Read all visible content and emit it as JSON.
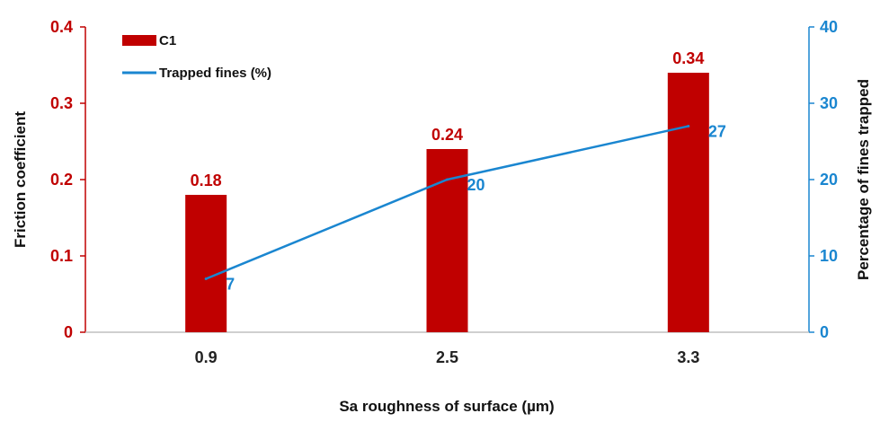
{
  "chart_data": {
    "type": "bar",
    "categories": [
      "0.9",
      "2.5",
      "3.3"
    ],
    "series": [
      {
        "name": "C1",
        "kind": "bar",
        "axis": "left",
        "color": "#c00000",
        "values": [
          0.18,
          0.24,
          0.34
        ],
        "labels": [
          "0.18",
          "0.24",
          "0.34"
        ]
      },
      {
        "name": "Trapped fines (%)",
        "kind": "line",
        "axis": "right",
        "color": "#1a86d0",
        "values": [
          7,
          20,
          27
        ],
        "labels": [
          "7",
          "20",
          "27"
        ]
      }
    ],
    "xlabel": "Sa roughness of surface (µm)",
    "ylabel": "Friction coefficient",
    "y2label": "Percentage of fines trapped",
    "ylim": [
      0,
      0.4
    ],
    "y2lim": [
      0,
      40
    ],
    "yticks": [
      "0",
      "0.1",
      "0.2",
      "0.3",
      "0.4"
    ],
    "y2ticks": [
      "0",
      "10",
      "20",
      "30",
      "40"
    ],
    "grid": false,
    "legend": "top-left",
    "colors": {
      "left_axis": "#c00000",
      "right_axis": "#1a86d0",
      "bar": "#c00000",
      "line": "#1a86d0"
    }
  }
}
